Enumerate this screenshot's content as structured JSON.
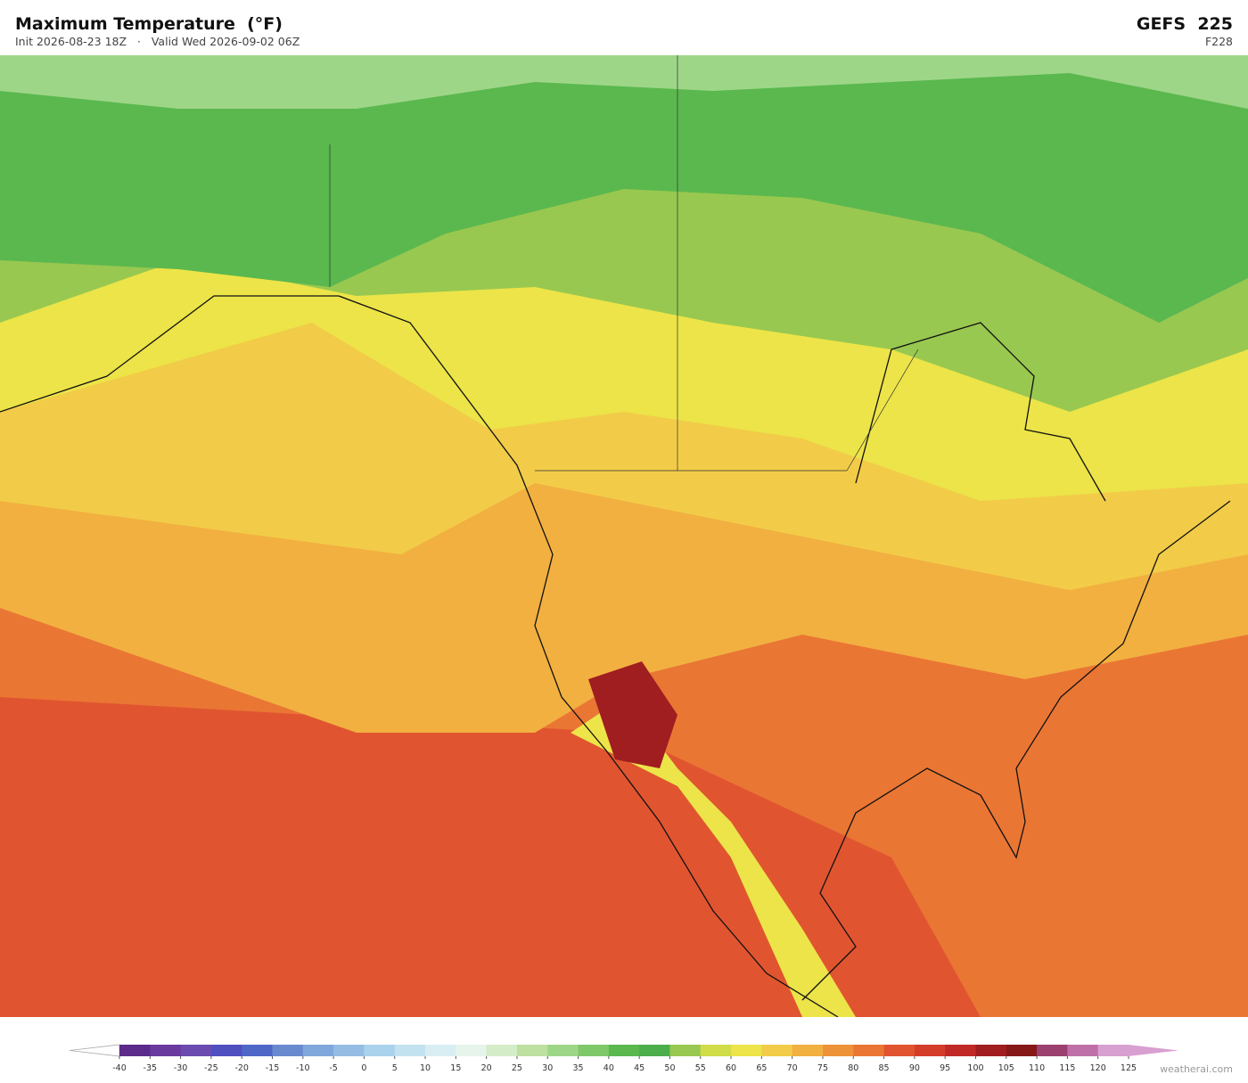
{
  "header": {
    "title": "Maximum Temperature  (°F)",
    "subtitle": "Init 2026-08-23 18Z   ·   Valid Wed 2026-09-02 06Z",
    "model": "GEFS  225",
    "forecast_hour": "F228"
  },
  "colorbar": {
    "ticks": [
      -40,
      -35,
      -30,
      -25,
      -20,
      -15,
      -10,
      -5,
      0,
      5,
      10,
      15,
      20,
      25,
      30,
      35,
      40,
      45,
      50,
      55,
      60,
      65,
      70,
      75,
      80,
      85,
      90,
      95,
      100,
      105,
      110,
      115,
      120,
      125
    ],
    "colors": [
      "#5b2a8a",
      "#6a3a9e",
      "#6b4bb0",
      "#4f4fc0",
      "#4f68c8",
      "#6a8ad0",
      "#80a8dc",
      "#95bde4",
      "#aad2ec",
      "#c2e2f0",
      "#d8eef3",
      "#e6f4ec",
      "#d4ecc8",
      "#bde0a0",
      "#9ed688",
      "#7ec86a",
      "#5ab84e",
      "#4cae4a",
      "#98c850",
      "#d0dc48",
      "#ece448",
      "#f2cc48",
      "#f2b040",
      "#ee9238",
      "#ea7634",
      "#e05530",
      "#d43d2a",
      "#c02a26",
      "#a01e20",
      "#861818",
      "#9c4070",
      "#c070a8",
      "#d8a0d0"
    ]
  },
  "watermark": "weatherai.com"
}
